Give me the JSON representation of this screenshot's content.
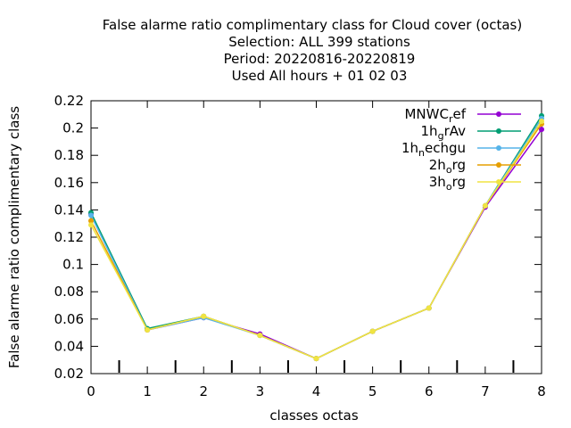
{
  "chart_data": {
    "type": "line",
    "title_lines": [
      "False alarme ratio complimentary class  for Cloud cover (octas)",
      "Selection: ALL     399 stations",
      "Period: 20220816-20220819",
      "Used  All hours  + 01 02 03"
    ],
    "xlabel": "classes octas",
    "ylabel": "False alarme ratio complimentary class",
    "xlim": [
      0,
      8
    ],
    "ylim": [
      0.02,
      0.22
    ],
    "x_ticks": [
      "0",
      "1",
      "2",
      "3",
      "4",
      "5",
      "6",
      "7",
      "8"
    ],
    "y_ticks": [
      "0.02",
      "0.04",
      "0.06",
      "0.08",
      "0.1",
      "0.12",
      "0.14",
      "0.16",
      "0.18",
      "0.2",
      "0.22"
    ],
    "grid": false,
    "legend_position": "top-right",
    "x": [
      0,
      1,
      2,
      3,
      4,
      5,
      6,
      7,
      8
    ],
    "series": [
      {
        "name": "MNWC_ref",
        "legend_main": "MNWC",
        "legend_sub": "r",
        "legend_rest": "ef",
        "color": "#9400d3",
        "values": [
          0.137,
          0.052,
          0.061,
          0.049,
          0.031,
          0.051,
          0.068,
          0.142,
          0.199
        ]
      },
      {
        "name": "1h_grAv",
        "legend_main": "1h",
        "legend_sub": "g",
        "legend_rest": "rAv",
        "color": "#009e73",
        "values": [
          0.138,
          0.053,
          0.062,
          0.048,
          0.031,
          0.051,
          0.068,
          0.143,
          0.209
        ]
      },
      {
        "name": "1h_nechgu",
        "legend_main": "1h",
        "legend_sub": "n",
        "legend_rest": "echgu",
        "color": "#56b4e9",
        "values": [
          0.136,
          0.052,
          0.061,
          0.048,
          0.031,
          0.051,
          0.068,
          0.143,
          0.207
        ]
      },
      {
        "name": "2h_org",
        "legend_main": "2h",
        "legend_sub": "o",
        "legend_rest": "rg",
        "color": "#e69f00",
        "values": [
          0.132,
          0.052,
          0.062,
          0.048,
          0.031,
          0.051,
          0.068,
          0.143,
          0.203
        ]
      },
      {
        "name": "3h_org",
        "legend_main": "3h",
        "legend_sub": "o",
        "legend_rest": "rg",
        "color": "#f0e442",
        "values": [
          0.129,
          0.052,
          0.062,
          0.048,
          0.031,
          0.051,
          0.068,
          0.143,
          0.205
        ]
      }
    ]
  }
}
